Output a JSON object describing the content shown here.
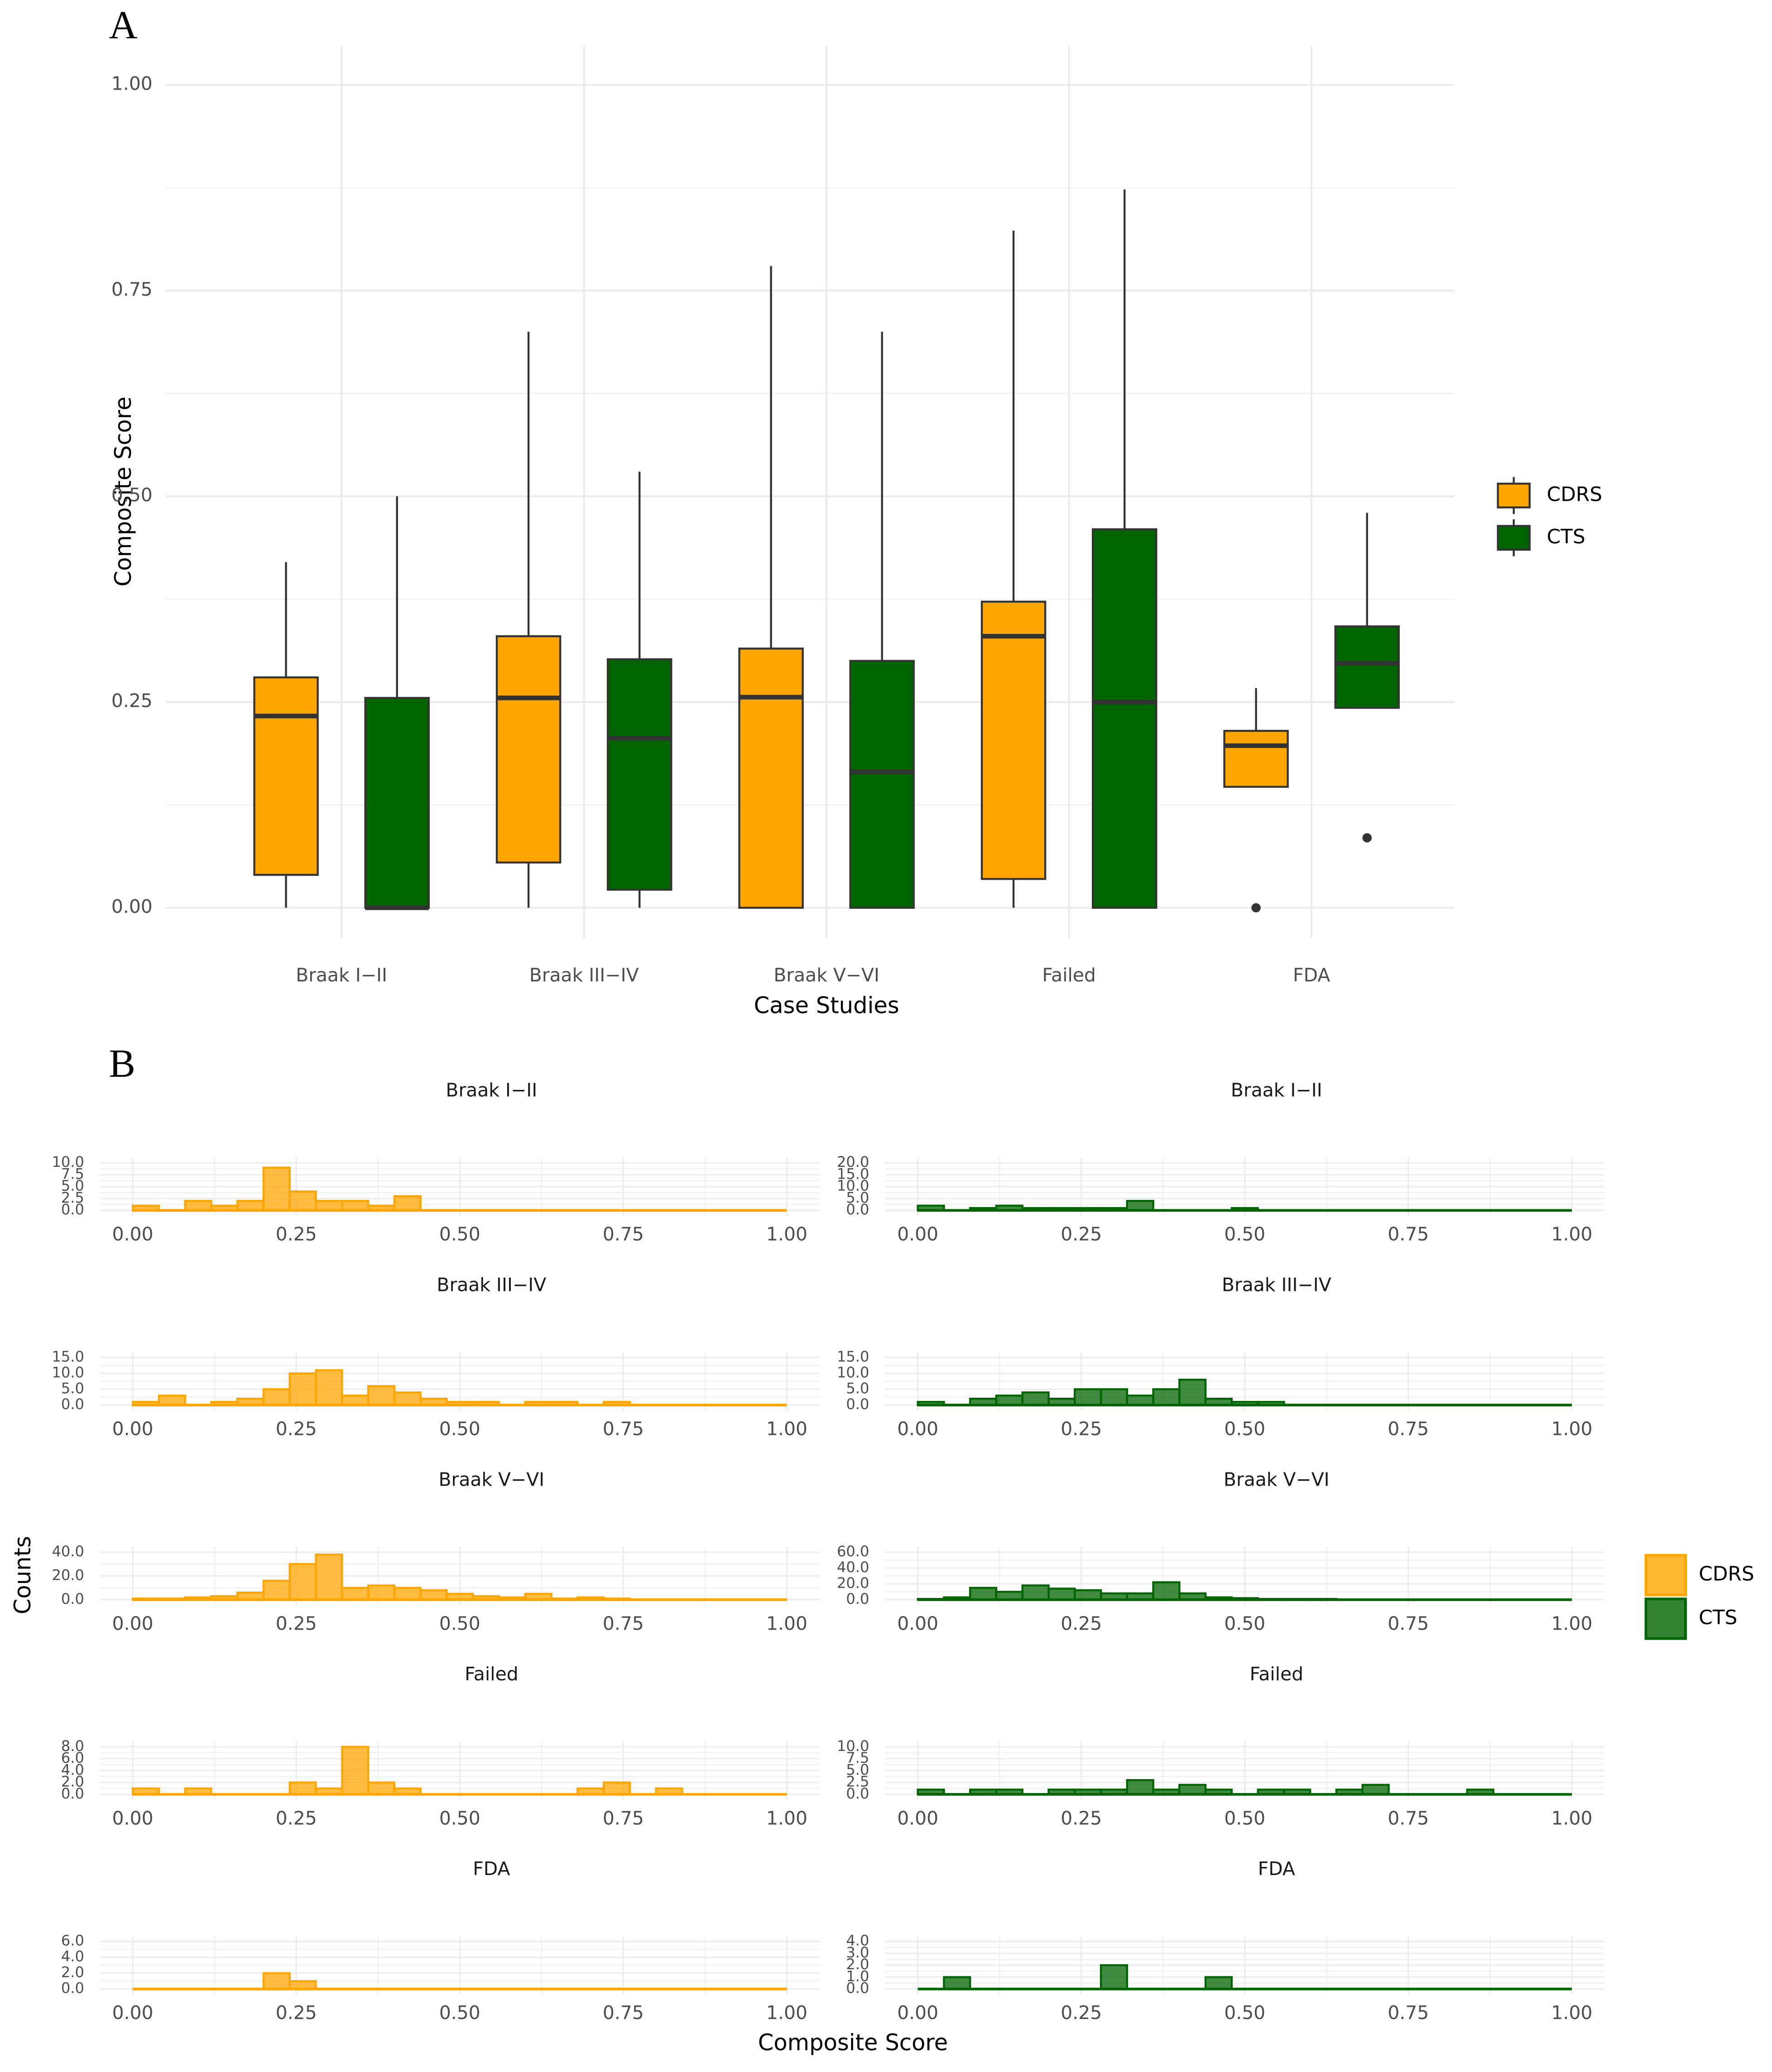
{
  "chart_data": [
    {
      "type": "boxplot",
      "panel_label": "A",
      "xlabel": "Case Studies",
      "ylabel": "Composite Score",
      "categories": [
        "Braak I−II",
        "Braak III−IV",
        "Braak V−VI",
        "Failed",
        "FDA"
      ],
      "ylim": [
        -0.037,
        1.047
      ],
      "yticks": [
        {
          "value": 0,
          "label": "0.00"
        },
        {
          "value": 0.25,
          "label": "0.25"
        },
        {
          "value": 0.5,
          "label": "0.50"
        },
        {
          "value": 0.75,
          "label": "0.75"
        },
        {
          "value": 1,
          "label": "1.00"
        }
      ],
      "grid": true,
      "series": [
        {
          "name": "CDRS",
          "color": "#FFA500",
          "min": [
            0,
            0,
            0,
            0,
            0.147
          ],
          "q1": [
            0.04,
            0.055,
            0,
            0.035,
            0.147
          ],
          "median": [
            0.233,
            0.255,
            0.256,
            0.33,
            0.197
          ],
          "q3": [
            0.28,
            0.33,
            0.315,
            0.372,
            0.215
          ],
          "max": [
            0.42,
            0.7,
            0.78,
            0.823,
            0.267
          ],
          "outliers": [
            [],
            [],
            [],
            [],
            [
              0
            ]
          ]
        },
        {
          "name": "CTS",
          "color": "#006400",
          "min": [
            0,
            0,
            0,
            0,
            0.243
          ],
          "q1": [
            0,
            0.022,
            0,
            0,
            0.243
          ],
          "median": [
            0,
            0.206,
            0.165,
            0.25,
            0.297
          ],
          "q3": [
            0.255,
            0.302,
            0.3,
            0.46,
            0.342
          ],
          "max": [
            0.5,
            0.53,
            0.7,
            0.873,
            0.48
          ],
          "outliers": [
            [],
            [],
            [],
            [],
            [
              0.085
            ]
          ]
        }
      ]
    },
    {
      "type": "histogram",
      "title": "Braak I−II",
      "name": "CDRS",
      "color": "#FFA500",
      "xlim": [
        -0.05,
        1.05
      ],
      "bins": [
        0,
        0.04,
        0.08,
        0.12,
        0.16,
        0.2,
        0.24,
        0.28,
        0.32,
        0.36,
        0.4,
        0.44,
        0.48,
        0.52,
        0.56,
        0.6,
        0.64,
        0.68,
        0.72,
        0.76,
        0.8,
        0.84,
        0.88,
        0.92,
        0.96,
        1
      ],
      "counts": [
        1,
        0,
        2,
        1,
        2,
        9,
        4,
        2,
        2,
        1,
        3,
        0,
        0,
        0,
        0,
        0,
        0,
        0,
        0,
        0,
        0,
        0,
        0,
        0,
        0
      ],
      "ylim": [
        0,
        10
      ],
      "yticks": [
        {
          "value": 0,
          "label": "0.0"
        },
        {
          "value": 2.5,
          "label": "2.5"
        },
        {
          "value": 5,
          "label": "5.0"
        },
        {
          "value": 7.5,
          "label": "7.5"
        },
        {
          "value": 10,
          "label": "10.0"
        }
      ],
      "xticks": [
        {
          "value": 0,
          "label": "0.00"
        },
        {
          "value": 0.25,
          "label": "0.25"
        },
        {
          "value": 0.5,
          "label": "0.50"
        },
        {
          "value": 0.75,
          "label": "0.75"
        },
        {
          "value": 1,
          "label": "1.00"
        }
      ]
    },
    {
      "type": "histogram",
      "title": "Braak I−II",
      "name": "CTS",
      "color": "#006400",
      "xlim": [
        -0.05,
        1.05
      ],
      "bins": [
        0,
        0.04,
        0.08,
        0.12,
        0.16,
        0.2,
        0.24,
        0.28,
        0.32,
        0.36,
        0.4,
        0.44,
        0.48,
        0.52,
        0.56,
        0.6,
        0.64,
        0.68,
        0.72,
        0.76,
        0.8,
        0.84,
        0.88,
        0.92,
        0.96,
        1
      ],
      "counts": [
        2,
        0,
        1,
        2,
        1,
        1,
        1,
        1,
        4,
        0,
        0,
        0,
        1,
        0,
        0,
        0,
        0,
        0,
        0,
        0,
        0,
        0,
        0,
        0,
        0
      ],
      "ylim": [
        0,
        20
      ],
      "yticks": [
        {
          "value": 0,
          "label": "0.0"
        },
        {
          "value": 5,
          "label": "5.0"
        },
        {
          "value": 10,
          "label": "10.0"
        },
        {
          "value": 15,
          "label": "15.0"
        },
        {
          "value": 20,
          "label": "20.0"
        }
      ],
      "xticks": [
        {
          "value": 0,
          "label": "0.00"
        },
        {
          "value": 0.25,
          "label": "0.25"
        },
        {
          "value": 0.5,
          "label": "0.50"
        },
        {
          "value": 0.75,
          "label": "0.75"
        },
        {
          "value": 1,
          "label": "1.00"
        }
      ]
    },
    {
      "type": "histogram",
      "title": "Braak III−IV",
      "name": "CDRS",
      "color": "#FFA500",
      "xlim": [
        -0.05,
        1.05
      ],
      "bins": [
        0,
        0.04,
        0.08,
        0.12,
        0.16,
        0.2,
        0.24,
        0.28,
        0.32,
        0.36,
        0.4,
        0.44,
        0.48,
        0.52,
        0.56,
        0.6,
        0.64,
        0.68,
        0.72,
        0.76,
        0.8,
        0.84,
        0.88,
        0.92,
        0.96,
        1
      ],
      "counts": [
        1,
        3,
        0,
        1,
        2,
        5,
        10,
        11,
        3,
        6,
        4,
        2,
        1,
        1,
        0,
        1,
        1,
        0,
        1,
        0,
        0,
        0,
        0,
        0,
        0
      ],
      "ylim": [
        0,
        15
      ],
      "yticks": [
        {
          "value": 0,
          "label": "0.0"
        },
        {
          "value": 5,
          "label": "5.0"
        },
        {
          "value": 10,
          "label": "10.0"
        },
        {
          "value": 15,
          "label": "15.0"
        }
      ],
      "xticks": [
        {
          "value": 0,
          "label": "0.00"
        },
        {
          "value": 0.25,
          "label": "0.25"
        },
        {
          "value": 0.5,
          "label": "0.50"
        },
        {
          "value": 0.75,
          "label": "0.75"
        },
        {
          "value": 1,
          "label": "1.00"
        }
      ]
    },
    {
      "type": "histogram",
      "title": "Braak III−IV",
      "name": "CTS",
      "color": "#006400",
      "xlim": [
        -0.05,
        1.05
      ],
      "bins": [
        0,
        0.04,
        0.08,
        0.12,
        0.16,
        0.2,
        0.24,
        0.28,
        0.32,
        0.36,
        0.4,
        0.44,
        0.48,
        0.52,
        0.56,
        0.6,
        0.64,
        0.68,
        0.72,
        0.76,
        0.8,
        0.84,
        0.88,
        0.92,
        0.96,
        1
      ],
      "counts": [
        1,
        0,
        2,
        3,
        4,
        2,
        5,
        5,
        3,
        5,
        8,
        2,
        1,
        1,
        0,
        0,
        0,
        0,
        0,
        0,
        0,
        0,
        0,
        0,
        0
      ],
      "ylim": [
        0,
        15
      ],
      "yticks": [
        {
          "value": 0,
          "label": "0.0"
        },
        {
          "value": 5,
          "label": "5.0"
        },
        {
          "value": 10,
          "label": "10.0"
        },
        {
          "value": 15,
          "label": "15.0"
        }
      ],
      "xticks": [
        {
          "value": 0,
          "label": "0.00"
        },
        {
          "value": 0.25,
          "label": "0.25"
        },
        {
          "value": 0.5,
          "label": "0.50"
        },
        {
          "value": 0.75,
          "label": "0.75"
        },
        {
          "value": 1,
          "label": "1.00"
        }
      ]
    },
    {
      "type": "histogram",
      "title": "Braak V−VI",
      "name": "CDRS",
      "color": "#FFA500",
      "xlim": [
        -0.05,
        1.05
      ],
      "bins": [
        0,
        0.04,
        0.08,
        0.12,
        0.16,
        0.2,
        0.24,
        0.28,
        0.32,
        0.36,
        0.4,
        0.44,
        0.48,
        0.52,
        0.56,
        0.6,
        0.64,
        0.68,
        0.72,
        0.76,
        0.8,
        0.84,
        0.88,
        0.92,
        0.96,
        1
      ],
      "counts": [
        1,
        1,
        2,
        3,
        6,
        16,
        30,
        38,
        10,
        12,
        10,
        8,
        5,
        3,
        2,
        5,
        1,
        2,
        1,
        0,
        0,
        0,
        0,
        0,
        0
      ],
      "ylim": [
        0,
        40
      ],
      "yticks": [
        {
          "value": 0,
          "label": "0.0"
        },
        {
          "value": 20,
          "label": "20.0"
        },
        {
          "value": 40,
          "label": "40.0"
        }
      ],
      "xticks": [
        {
          "value": 0,
          "label": "0.00"
        },
        {
          "value": 0.25,
          "label": "0.25"
        },
        {
          "value": 0.5,
          "label": "0.50"
        },
        {
          "value": 0.75,
          "label": "0.75"
        },
        {
          "value": 1,
          "label": "1.00"
        }
      ]
    },
    {
      "type": "histogram",
      "title": "Braak V−VI",
      "name": "CTS",
      "color": "#006400",
      "xlim": [
        -0.05,
        1.05
      ],
      "bins": [
        0,
        0.04,
        0.08,
        0.12,
        0.16,
        0.2,
        0.24,
        0.28,
        0.32,
        0.36,
        0.4,
        0.44,
        0.48,
        0.52,
        0.56,
        0.6,
        0.64,
        0.68,
        0.72,
        0.76,
        0.8,
        0.84,
        0.88,
        0.92,
        0.96,
        1
      ],
      "counts": [
        1,
        3,
        15,
        10,
        18,
        14,
        12,
        8,
        8,
        22,
        8,
        3,
        2,
        1,
        1,
        1,
        0,
        0,
        0,
        0,
        0,
        0,
        0,
        0,
        0
      ],
      "ylim": [
        0,
        60
      ],
      "yticks": [
        {
          "value": 0,
          "label": "0.0"
        },
        {
          "value": 20,
          "label": "20.0"
        },
        {
          "value": 40,
          "label": "40.0"
        },
        {
          "value": 60,
          "label": "60.0"
        }
      ],
      "xticks": [
        {
          "value": 0,
          "label": "0.00"
        },
        {
          "value": 0.25,
          "label": "0.25"
        },
        {
          "value": 0.5,
          "label": "0.50"
        },
        {
          "value": 0.75,
          "label": "0.75"
        },
        {
          "value": 1,
          "label": "1.00"
        }
      ]
    },
    {
      "type": "histogram",
      "title": "Failed",
      "name": "CDRS",
      "color": "#FFA500",
      "xlim": [
        -0.05,
        1.05
      ],
      "bins": [
        0,
        0.04,
        0.08,
        0.12,
        0.16,
        0.2,
        0.24,
        0.28,
        0.32,
        0.36,
        0.4,
        0.44,
        0.48,
        0.52,
        0.56,
        0.6,
        0.64,
        0.68,
        0.72,
        0.76,
        0.8,
        0.84,
        0.88,
        0.92,
        0.96,
        1
      ],
      "counts": [
        1,
        0,
        1,
        0,
        0,
        0,
        2,
        1,
        8,
        2,
        1,
        0,
        0,
        0,
        0,
        0,
        0,
        1,
        2,
        0,
        1,
        0,
        0,
        0,
        0
      ],
      "ylim": [
        0,
        8
      ],
      "yticks": [
        {
          "value": 0,
          "label": "0.0"
        },
        {
          "value": 2,
          "label": "2.0"
        },
        {
          "value": 4,
          "label": "4.0"
        },
        {
          "value": 6,
          "label": "6.0"
        },
        {
          "value": 8,
          "label": "8.0"
        }
      ],
      "xticks": [
        {
          "value": 0,
          "label": "0.00"
        },
        {
          "value": 0.25,
          "label": "0.25"
        },
        {
          "value": 0.5,
          "label": "0.50"
        },
        {
          "value": 0.75,
          "label": "0.75"
        },
        {
          "value": 1,
          "label": "1.00"
        }
      ]
    },
    {
      "type": "histogram",
      "title": "Failed",
      "name": "CTS",
      "color": "#006400",
      "xlim": [
        -0.05,
        1.05
      ],
      "bins": [
        0,
        0.04,
        0.08,
        0.12,
        0.16,
        0.2,
        0.24,
        0.28,
        0.32,
        0.36,
        0.4,
        0.44,
        0.48,
        0.52,
        0.56,
        0.6,
        0.64,
        0.68,
        0.72,
        0.76,
        0.8,
        0.84,
        0.88,
        0.92,
        0.96,
        1
      ],
      "counts": [
        1,
        0,
        1,
        1,
        0,
        1,
        1,
        1,
        3,
        1,
        2,
        1,
        0,
        1,
        1,
        0,
        1,
        2,
        0,
        0,
        0,
        1,
        0,
        0,
        0
      ],
      "ylim": [
        0,
        10
      ],
      "yticks": [
        {
          "value": 0,
          "label": "0.0"
        },
        {
          "value": 2.5,
          "label": "2.5"
        },
        {
          "value": 5,
          "label": "5.0"
        },
        {
          "value": 7.5,
          "label": "7.5"
        },
        {
          "value": 10,
          "label": "10.0"
        }
      ],
      "xticks": [
        {
          "value": 0,
          "label": "0.00"
        },
        {
          "value": 0.25,
          "label": "0.25"
        },
        {
          "value": 0.5,
          "label": "0.50"
        },
        {
          "value": 0.75,
          "label": "0.75"
        },
        {
          "value": 1,
          "label": "1.00"
        }
      ]
    },
    {
      "type": "histogram",
      "title": "FDA",
      "name": "CDRS",
      "color": "#FFA500",
      "xlim": [
        -0.05,
        1.05
      ],
      "bins": [
        0,
        0.04,
        0.08,
        0.12,
        0.16,
        0.2,
        0.24,
        0.28,
        0.32,
        0.36,
        0.4,
        0.44,
        0.48,
        0.52,
        0.56,
        0.6,
        0.64,
        0.68,
        0.72,
        0.76,
        0.8,
        0.84,
        0.88,
        0.92,
        0.96,
        1
      ],
      "counts": [
        0,
        0,
        0,
        0,
        0,
        2,
        1,
        0,
        0,
        0,
        0,
        0,
        0,
        0,
        0,
        0,
        0,
        0,
        0,
        0,
        0,
        0,
        0,
        0,
        0
      ],
      "ylim": [
        0,
        6
      ],
      "yticks": [
        {
          "value": 0,
          "label": "0.0"
        },
        {
          "value": 2,
          "label": "2.0"
        },
        {
          "value": 4,
          "label": "4.0"
        },
        {
          "value": 6,
          "label": "6.0"
        }
      ],
      "xticks": [
        {
          "value": 0,
          "label": "0.00"
        },
        {
          "value": 0.25,
          "label": "0.25"
        },
        {
          "value": 0.5,
          "label": "0.50"
        },
        {
          "value": 0.75,
          "label": "0.75"
        },
        {
          "value": 1,
          "label": "1.00"
        }
      ]
    },
    {
      "type": "histogram",
      "title": "FDA",
      "name": "CTS",
      "color": "#006400",
      "xlim": [
        -0.05,
        1.05
      ],
      "bins": [
        0,
        0.04,
        0.08,
        0.12,
        0.16,
        0.2,
        0.24,
        0.28,
        0.32,
        0.36,
        0.4,
        0.44,
        0.48,
        0.52,
        0.56,
        0.6,
        0.64,
        0.68,
        0.72,
        0.76,
        0.8,
        0.84,
        0.88,
        0.92,
        0.96,
        1
      ],
      "counts": [
        0,
        1,
        0,
        0,
        0,
        0,
        0,
        2,
        0,
        0,
        0,
        1,
        0,
        0,
        0,
        0,
        0,
        0,
        0,
        0,
        0,
        0,
        0,
        0,
        0
      ],
      "ylim": [
        0,
        4
      ],
      "yticks": [
        {
          "value": 0,
          "label": "0.0"
        },
        {
          "value": 1,
          "label": "1.0"
        },
        {
          "value": 2,
          "label": "2.0"
        },
        {
          "value": 3,
          "label": "3.0"
        },
        {
          "value": 4,
          "label": "4.0"
        }
      ],
      "xticks": [
        {
          "value": 0,
          "label": "0.00"
        },
        {
          "value": 0.25,
          "label": "0.25"
        },
        {
          "value": 0.5,
          "label": "0.50"
        },
        {
          "value": 0.75,
          "label": "0.75"
        },
        {
          "value": 1,
          "label": "1.00"
        }
      ]
    }
  ],
  "panel_b": {
    "panel_label": "B",
    "xlabel": "Composite Score",
    "ylabel": "Counts"
  }
}
